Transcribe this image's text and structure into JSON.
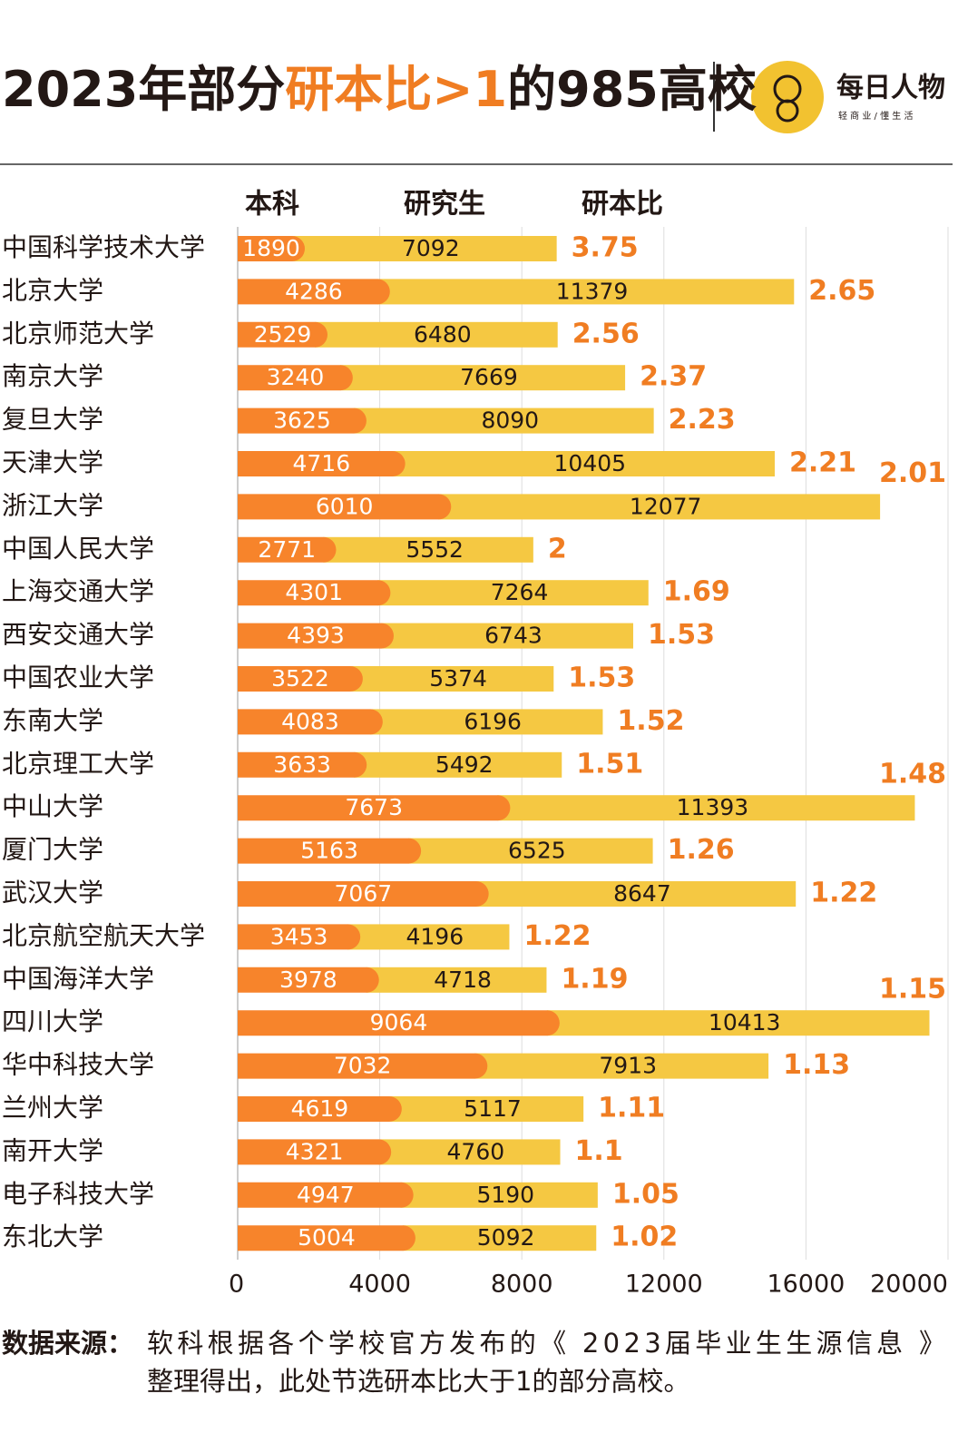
{
  "chart_data": {
    "type": "stacked-bar-h",
    "title": [
      "2023年部分",
      "研本比>1",
      "的985高校"
    ],
    "title_colors": [
      "#231815",
      "#f07d22",
      "#231815"
    ],
    "logo": {
      "name": "每日人物",
      "slogan": "轻 商 业  /  懂 生 活"
    },
    "categories": [
      "中国科学技术大学",
      "北京大学",
      "北京师范大学",
      "南京大学",
      "复旦大学",
      "天津大学",
      "浙江大学",
      "中国人民大学",
      "上海交通大学",
      "西安交通大学",
      "中国农业大学",
      "东南大学",
      "北京理工大学",
      "中山大学",
      "厦门大学",
      "武汉大学",
      "北京航空航天大学",
      "中国海洋大学",
      "四川大学",
      "华中科技大学",
      "兰州大学",
      "南开大学",
      "电子科技大学",
      "东北大学"
    ],
    "series": [
      {
        "name": "本科",
        "color": "#f7842b",
        "values": [
          1890,
          4286,
          2529,
          3240,
          3625,
          4716,
          6010,
          2771,
          4301,
          4393,
          3522,
          4083,
          3633,
          7673,
          5163,
          7067,
          3453,
          3978,
          9064,
          7032,
          4619,
          4321,
          4947,
          5004
        ]
      },
      {
        "name": "研究生",
        "color": "#f5c842",
        "values": [
          7092,
          11379,
          6480,
          7669,
          8090,
          10405,
          12077,
          5552,
          7264,
          6743,
          5374,
          6196,
          5492,
          11393,
          6525,
          8647,
          4196,
          4718,
          10413,
          7913,
          5117,
          4760,
          5190,
          5092
        ]
      }
    ],
    "ratios": {
      "name": "研本比",
      "color": "#f07d22",
      "values": [
        3.75,
        2.65,
        2.56,
        2.37,
        2.23,
        2.21,
        2.01,
        2,
        1.69,
        1.53,
        1.53,
        1.52,
        1.51,
        1.48,
        1.26,
        1.22,
        1.22,
        1.19,
        1.15,
        1.13,
        1.11,
        1.1,
        1.05,
        1.02
      ]
    },
    "xlim": [
      0,
      20000
    ],
    "xticks": [
      0,
      4000,
      8000,
      12000,
      16000,
      20000
    ],
    "grid": true,
    "source": {
      "label": "数据来源：",
      "lines": [
        "软科根据各个学校官方发布的《 2023届毕业生生源信息 》",
        "整理得出，此处节选研本比大于1的部分高校。"
      ]
    }
  }
}
